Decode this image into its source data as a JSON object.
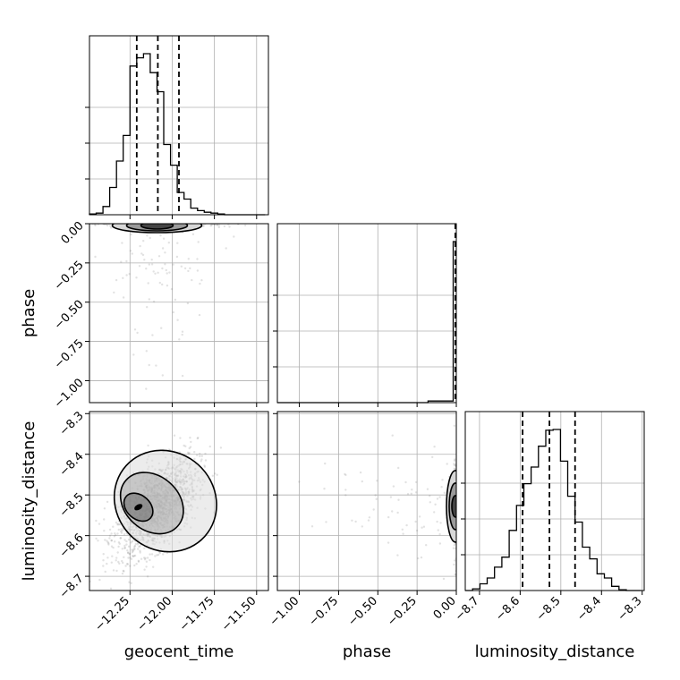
{
  "chart_data": {
    "type": "corner",
    "parameters": [
      "geocent_time",
      "phase",
      "luminosity_distance"
    ],
    "axis_labels": {
      "geocent_time": "geocent_time",
      "phase": "phase",
      "luminosity_distance": "luminosity_distance"
    },
    "ranges": {
      "geocent_time": [
        -12.49,
        -11.43
      ],
      "phase": [
        -1.14,
        0.0
      ],
      "luminosity_distance": [
        -8.735,
        -8.295
      ]
    },
    "ticks": {
      "geocent_time": {
        "values": [
          -12.25,
          -12.0,
          -11.75,
          -11.5
        ],
        "labels": [
          "−12.25",
          "−12.00",
          "−11.75",
          "−11.50"
        ]
      },
      "phase": {
        "values": [
          -1.0,
          -0.75,
          -0.5,
          -0.25,
          0.0
        ],
        "labels": [
          "−1.00",
          "−0.75",
          "−0.50",
          "−0.25",
          "0.00"
        ]
      },
      "luminosity_distance": {
        "values": [
          -8.7,
          -8.6,
          -8.5,
          -8.4,
          -8.3
        ],
        "labels": [
          "−8.7",
          "−8.6",
          "−8.5",
          "−8.4",
          "−8.3"
        ]
      }
    },
    "quantiles": {
      "geocent_time": [
        -12.21,
        -12.085,
        -11.96
      ],
      "phase": [
        -0.002,
        -0.0015,
        -0.001
      ],
      "luminosity_distance": [
        -8.594,
        -8.528,
        -8.465
      ]
    },
    "histograms": {
      "geocent_time": {
        "edges": [
          -12.49,
          -12.45,
          -12.41,
          -12.37,
          -12.33,
          -12.29,
          -12.25,
          -12.21,
          -12.17,
          -12.13,
          -12.09,
          -12.05,
          -12.01,
          -11.97,
          -11.93,
          -11.89,
          -11.85,
          -11.81,
          -11.77,
          -11.73,
          -11.69,
          -11.65,
          -11.61,
          -11.57,
          -11.53,
          -11.49,
          -11.45
        ],
        "counts": [
          1,
          2,
          10,
          33,
          65,
          96,
          180,
          190,
          195,
          172,
          149,
          85,
          60,
          27,
          19,
          8,
          5,
          3,
          2,
          1,
          0,
          0,
          0,
          0,
          0,
          0
        ]
      },
      "phase": {
        "edges": [
          -1.14,
          -0.98,
          -0.82,
          -0.66,
          -0.5,
          -0.34,
          -0.18,
          -0.02,
          0.0
        ],
        "counts": [
          0,
          0,
          0,
          0,
          0,
          0,
          1,
          100
        ]
      },
      "luminosity_distance": {
        "edges": [
          -8.735,
          -8.717,
          -8.699,
          -8.681,
          -8.663,
          -8.645,
          -8.627,
          -8.609,
          -8.591,
          -8.573,
          -8.555,
          -8.537,
          -8.519,
          -8.501,
          -8.483,
          -8.465,
          -8.447,
          -8.429,
          -8.411,
          -8.393,
          -8.375,
          -8.357,
          -8.339,
          -8.321,
          -8.303
        ],
        "counts": [
          0,
          2,
          8,
          15,
          28,
          40,
          72,
          102,
          128,
          148,
          173,
          192,
          193,
          155,
          113,
          82,
          52,
          38,
          20,
          15,
          5,
          1,
          0,
          0
        ]
      }
    },
    "scatter_geocent_time_phase": {
      "center": [
        -12.085,
        -0.002
      ],
      "spread": [
        0.18,
        0.01
      ],
      "n": 260
    },
    "scatter_geocent_time_luminosity_distance": {
      "center": [
        -12.09,
        -8.528
      ],
      "spread": [
        0.12,
        0.06
      ],
      "correlation": 0.55,
      "n": 1600,
      "contours": [
        {
          "level": "inner",
          "center": [
            -12.2,
            -8.53
          ],
          "half_widths": [
            0.07,
            0.04
          ]
        },
        {
          "level": "middle",
          "center": [
            -12.12,
            -8.52
          ],
          "half_widths": [
            0.16,
            0.085
          ]
        },
        {
          "level": "outer",
          "center": [
            -12.04,
            -8.515
          ],
          "half_widths": [
            0.29,
            0.13
          ]
        }
      ]
    },
    "scatter_phase_luminosity_distance": {
      "center": [
        -0.002,
        -8.528
      ],
      "spread": [
        0.01,
        0.06
      ],
      "n": 220
    }
  }
}
